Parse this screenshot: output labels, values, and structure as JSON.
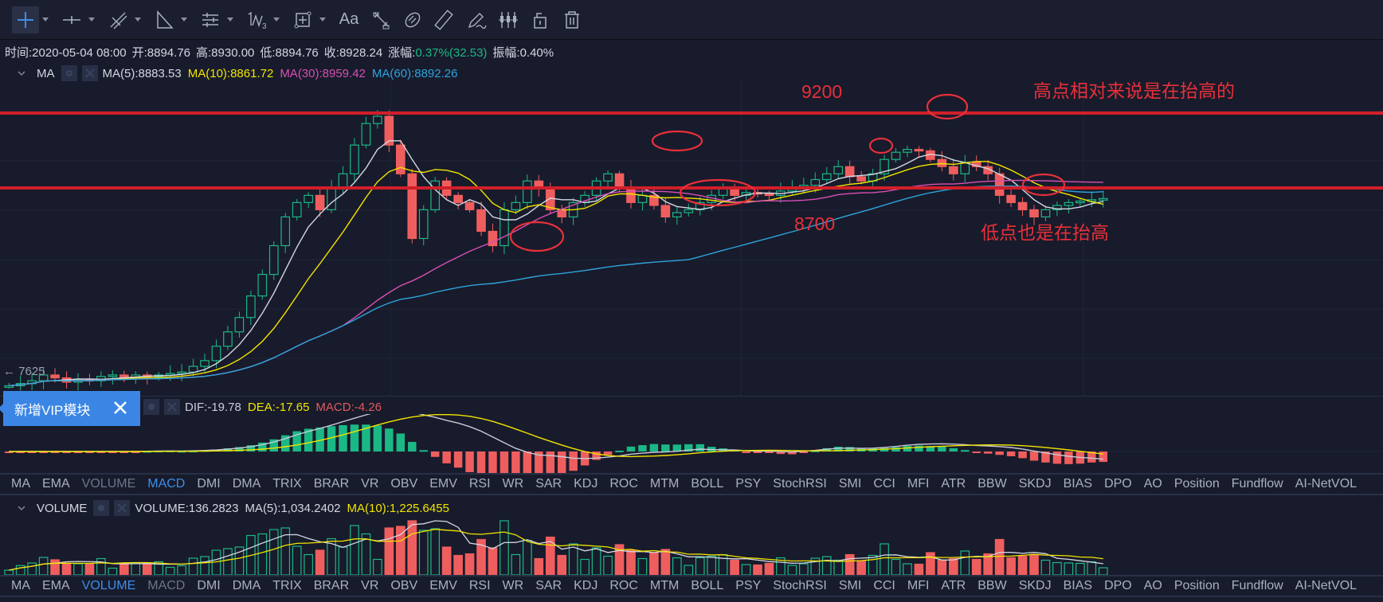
{
  "toolbar": {
    "tools": [
      {
        "name": "crosshair-icon",
        "active": true,
        "caret": true
      },
      {
        "name": "horizontal-line-icon",
        "caret": true
      },
      {
        "name": "trend-lines-icon",
        "caret": true
      },
      {
        "name": "triangle-shape-icon",
        "caret": true
      },
      {
        "name": "parallel-channel-icon",
        "caret": true
      },
      {
        "name": "fibonacci-wave-icon",
        "caret": true
      },
      {
        "name": "measure-box-icon",
        "caret": true
      },
      {
        "name": "text-tool-icon",
        "label": "Aa"
      },
      {
        "name": "ruler-settings-icon"
      },
      {
        "name": "magnet-icon"
      },
      {
        "name": "ruler-icon"
      },
      {
        "name": "pen-icon"
      },
      {
        "name": "candles-icon"
      },
      {
        "name": "lock-icon"
      },
      {
        "name": "trash-icon"
      }
    ]
  },
  "infobar": {
    "time": "时间:2020-05-04 08:00",
    "open": "开:8894.76",
    "high": "高:8930.00",
    "low": "低:8894.76",
    "close": "收:8928.24",
    "change_label": "涨幅:",
    "change_value": "0.37%(32.53)",
    "amplitude": "振幅:0.40%"
  },
  "ma_pane": {
    "title": "MA",
    "values": [
      {
        "label": "MA(5):8883.53",
        "color": "#d4d7e2"
      },
      {
        "label": "MA(10):8861.72",
        "color": "#f1e400"
      },
      {
        "label": "MA(30):8959.42",
        "color": "#d84fb5"
      },
      {
        "label": "MA(60):8892.26",
        "color": "#2ea3dc"
      }
    ],
    "price_arrow_label": "← 7625"
  },
  "annotations": {
    "resistance_label": "9200",
    "support_label": "8700",
    "highs_note": "高点相对来说是在抬高的",
    "lows_note": "低点也是在抬高"
  },
  "macd_pane": {
    "dif": "DIF:-19.78",
    "dea": "DEA:-17.65",
    "macd": "MACD:-4.26",
    "colors": {
      "dif": "#c8cbd8",
      "dea": "#f1e400",
      "macd": "#e05a5a"
    }
  },
  "vip_popup": {
    "label": "新增VIP模块"
  },
  "volume_pane": {
    "title": "VOLUME",
    "volume": "VOLUME:136.2823",
    "ma5": "MA(5):1,034.2402",
    "ma10": "MA(10):1,225.6455"
  },
  "indicator_tabs": [
    "MA",
    "EMA",
    "VOLUME",
    "MACD",
    "DMI",
    "DMA",
    "TRIX",
    "BRAR",
    "VR",
    "OBV",
    "EMV",
    "RSI",
    "WR",
    "SAR",
    "KDJ",
    "ROC",
    "MTM",
    "BOLL",
    "PSY",
    "StochRSI",
    "SMI",
    "CCI",
    "MFI",
    "ATR",
    "BBW",
    "SKDJ",
    "BIAS",
    "DPO",
    "AO",
    "Position",
    "Fundflow",
    "AI-NetVOL"
  ],
  "macd_tabs_active": "MACD",
  "macd_tabs_dim": "VOLUME",
  "volume_tabs_active": "VOLUME",
  "volume_tabs_dim": "MACD",
  "colors": {
    "up": "#1bb885",
    "down": "#ef5e5e",
    "bg": "#181b2b",
    "annotation": "#e8303a"
  },
  "chart_data": {
    "type": "candlestick",
    "title": "BTC price chart with MA(5/10/30/60), MACD and VOLUME",
    "y_reference_lines": [
      9200,
      8700
    ],
    "price_start_label": 7625,
    "closes": [
      7625,
      7640,
      7660,
      7700,
      7680,
      7650,
      7670,
      7660,
      7690,
      7700,
      7680,
      7700,
      7690,
      7700,
      7710,
      7720,
      7760,
      7800,
      7900,
      8000,
      8100,
      8250,
      8400,
      8600,
      8800,
      8900,
      8950,
      8850,
      9000,
      9100,
      9300,
      9450,
      9500,
      9300,
      9100,
      8650,
      8850,
      9050,
      8950,
      8900,
      8850,
      8700,
      8600,
      8850,
      8900,
      9050,
      9000,
      8850,
      8800,
      8900,
      8950,
      9050,
      9100,
      9000,
      8900,
      8950,
      8880,
      8800,
      8830,
      8850,
      8900,
      8950,
      9000,
      8950,
      8970,
      8960,
      8950,
      8980,
      9000,
      9020,
      9060,
      9100,
      9150,
      9080,
      9050,
      9100,
      9200,
      9250,
      9270,
      9260,
      9200,
      9150,
      9100,
      9180,
      9150,
      9100,
      8950,
      8900,
      8850,
      8800,
      8850,
      8880,
      8900,
      8910,
      8920,
      8928
    ]
  }
}
